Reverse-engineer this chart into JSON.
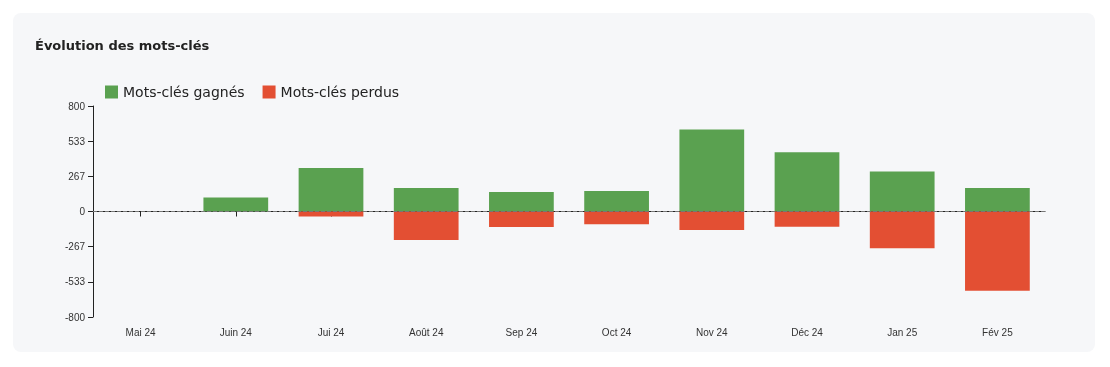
{
  "chart_data": {
    "type": "bar",
    "title": "Évolution des mots-clés",
    "stacked": true,
    "categories": [
      "Mai 24",
      "Juin 24",
      "Jui 24",
      "Août 24",
      "Sep 24",
      "Oct 24",
      "Nov 24",
      "Déc 24",
      "Jan 25",
      "Fév 25"
    ],
    "series": [
      {
        "name": "Mots-clés gagnés",
        "color": "#5aa150",
        "values": [
          null,
          107,
          330,
          179,
          148,
          156,
          621,
          449,
          303,
          179
        ]
      },
      {
        "name": "Mots-clés perdus",
        "color": "#e34f33",
        "values": [
          null,
          0,
          -38,
          -217,
          -118,
          -97,
          -141,
          -115,
          -279,
          -600
        ]
      }
    ],
    "ylim": [
      -800,
      800
    ],
    "yticks": [
      -800,
      -533,
      -267,
      0,
      267,
      533,
      800
    ],
    "ref_lines": [
      {
        "axis": "y",
        "value": 0,
        "color": "#777777",
        "line_style": "dashed"
      }
    ],
    "grid": false,
    "legend": "top left"
  }
}
